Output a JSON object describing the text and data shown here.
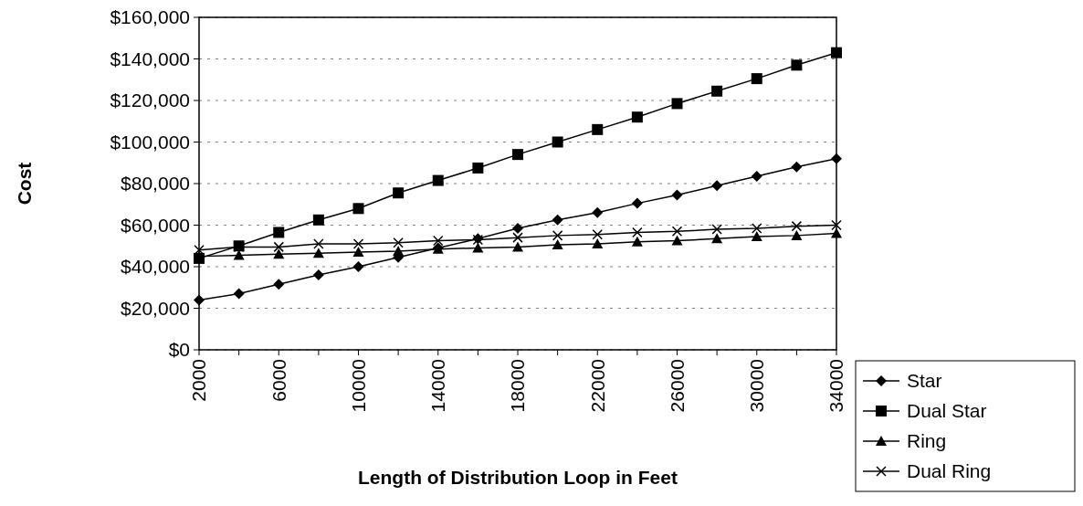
{
  "chart_data": {
    "type": "line",
    "xlabel": "Length of Distribution Loop in Feet",
    "ylabel": "Cost",
    "x": [
      2000,
      4000,
      6000,
      8000,
      10000,
      12000,
      14000,
      16000,
      18000,
      20000,
      22000,
      24000,
      26000,
      28000,
      30000,
      32000,
      34000
    ],
    "series": [
      {
        "name": "Star",
        "color": "#000000",
        "marker": "diamond",
        "values": [
          24000,
          27000,
          31500,
          36000,
          40000,
          44500,
          49000,
          53500,
          58500,
          62500,
          66000,
          70500,
          74500,
          79000,
          83500,
          88000,
          92000
        ]
      },
      {
        "name": "Dual Star",
        "color": "#000000",
        "marker": "square",
        "values": [
          44000,
          50000,
          56500,
          62500,
          68000,
          75500,
          81500,
          87500,
          94000,
          100000,
          106000,
          112000,
          118500,
          124500,
          130500,
          137000,
          143000
        ]
      },
      {
        "name": "Ring",
        "color": "#000000",
        "marker": "triangle",
        "values": [
          45000,
          45500,
          46000,
          46500,
          47000,
          47500,
          48500,
          49000,
          49500,
          50500,
          51000,
          52000,
          52500,
          53500,
          54500,
          55000,
          56000
        ]
      },
      {
        "name": "Dual Ring",
        "color": "#000000",
        "marker": "cross",
        "values": [
          48000,
          49500,
          49500,
          51000,
          51000,
          51500,
          52500,
          53000,
          54000,
          55000,
          55500,
          56500,
          57000,
          58000,
          58500,
          59500,
          60000
        ]
      }
    ],
    "xlim": [
      2000,
      34000
    ],
    "xticks": [
      2000,
      {
        "value": 4000,
        "label": null
      },
      6000,
      {
        "value": 8000,
        "label": null
      },
      10000,
      {
        "value": 12000,
        "label": null
      },
      14000,
      {
        "value": 16000,
        "label": null
      },
      18000,
      {
        "value": 20000,
        "label": null
      },
      22000,
      {
        "value": 24000,
        "label": null
      },
      26000,
      {
        "value": 28000,
        "label": null
      },
      30000,
      {
        "value": 32000,
        "label": null
      },
      34000
    ],
    "ylim": [
      0,
      160000
    ],
    "yticks": [
      {
        "value": 0,
        "label": "$0"
      },
      {
        "value": 20000,
        "label": "$20,000"
      },
      {
        "value": 40000,
        "label": "$40,000"
      },
      {
        "value": 60000,
        "label": "$60,000"
      },
      {
        "value": 80000,
        "label": "$80,000"
      },
      {
        "value": 100000,
        "label": "$100,000"
      },
      {
        "value": 120000,
        "label": "$120,000"
      },
      {
        "value": 140000,
        "label": "$140,000"
      },
      {
        "value": 160000,
        "label": "$160,000"
      }
    ],
    "grid": "y",
    "legend": "right",
    "line_style": "solid"
  }
}
